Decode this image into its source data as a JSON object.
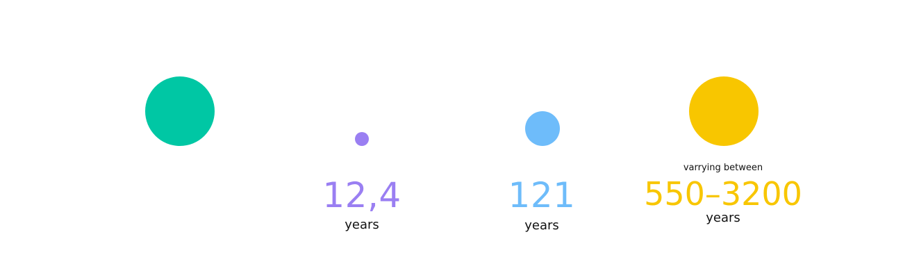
{
  "items": [
    {
      "name": "green",
      "color": "#00c7a4"
    },
    {
      "name": "purple",
      "color": "#9a7ff2",
      "value": "12,4",
      "unit": "years"
    },
    {
      "name": "blue",
      "color": "#6ebcfa",
      "value": "121",
      "unit": "years"
    },
    {
      "name": "yellow",
      "color": "#f8c600",
      "note": "varrying between",
      "value": "550–3200",
      "unit": "years"
    }
  ]
}
